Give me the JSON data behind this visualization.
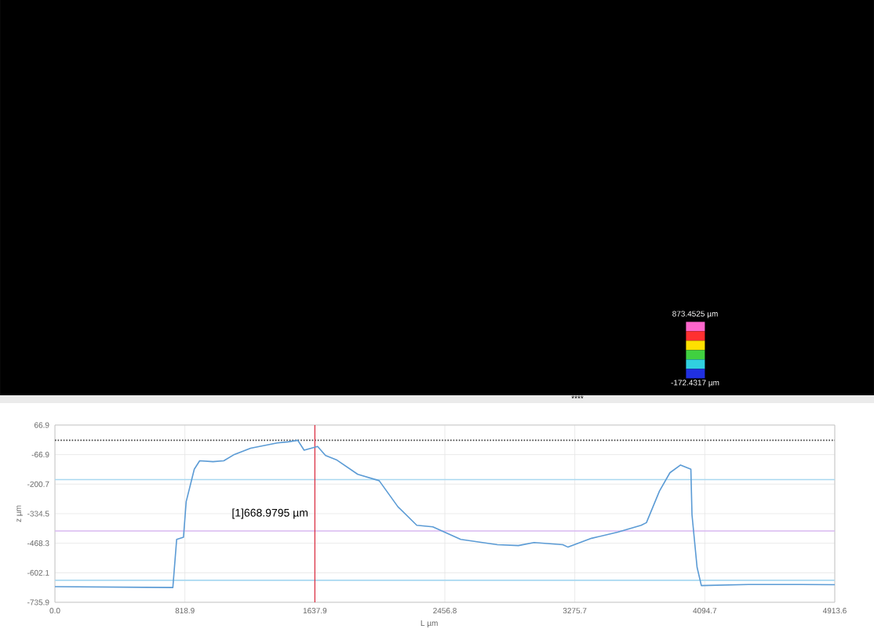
{
  "chart_data": {
    "type": "line",
    "xlabel": "L µm",
    "ylabel": "z µm",
    "xlim": [
      0,
      4913.6
    ],
    "ylim": [
      -735.9,
      66.9
    ],
    "xticks": [
      {
        "value": 0,
        "label": "0.0"
      },
      818.9,
      1637.9,
      2456.8,
      3275.7,
      4094.7,
      4913.6
    ],
    "yticks": [
      -735.9,
      -602.1,
      -468.3,
      -334.5,
      -200.7,
      -66.9,
      66.9
    ],
    "grid": true,
    "series": [
      {
        "color": "#5b9bd5",
        "x": [
          0,
          743,
          767,
          810,
          827,
          878,
          912,
          996,
          1064,
          1131,
          1233,
          1401,
          1469,
          1530,
          1570,
          1655,
          1705,
          1773,
          1908,
          2043,
          2161,
          2280,
          2381,
          2557,
          2788,
          2920,
          3019,
          3200,
          3233,
          3381,
          3546,
          3694,
          3727,
          3809,
          3875,
          3942,
          4007,
          4014,
          4046,
          4073,
          4370,
          4699,
          4913.6
        ],
        "values": [
          -665,
          -669,
          -451,
          -441,
          -280,
          -133,
          -95,
          -99,
          -95,
          -66,
          -38,
          -14,
          -9,
          -2,
          -47,
          -30,
          -71,
          -90,
          -156,
          -185,
          -303,
          -387,
          -394,
          -451,
          -475,
          -479,
          -465,
          -475,
          -486,
          -446,
          -418,
          -387,
          -375,
          -232,
          -149,
          -114,
          -133,
          -339,
          -577,
          -660,
          -655,
          -655,
          -656
        ]
      }
    ],
    "ref_lines": [
      {
        "axis": "y",
        "value": -2,
        "color": "#404040",
        "line_style": "dotted"
      },
      {
        "axis": "y",
        "value": -180,
        "color": "#a8d8f0",
        "line_style": "solid"
      },
      {
        "axis": "y",
        "value": -413,
        "color": "#d8b8f0",
        "line_style": "solid"
      },
      {
        "axis": "y",
        "value": -636,
        "color": "#a8d8f0",
        "line_style": "solid"
      },
      {
        "axis": "x",
        "value": 1637.9,
        "color": "#dc283c",
        "line_style": "solid",
        "label": "[1]668.9795 µm"
      }
    ],
    "annotations": [
      "873.4525 µm",
      "-172.4317 µm",
      "****"
    ]
  }
}
